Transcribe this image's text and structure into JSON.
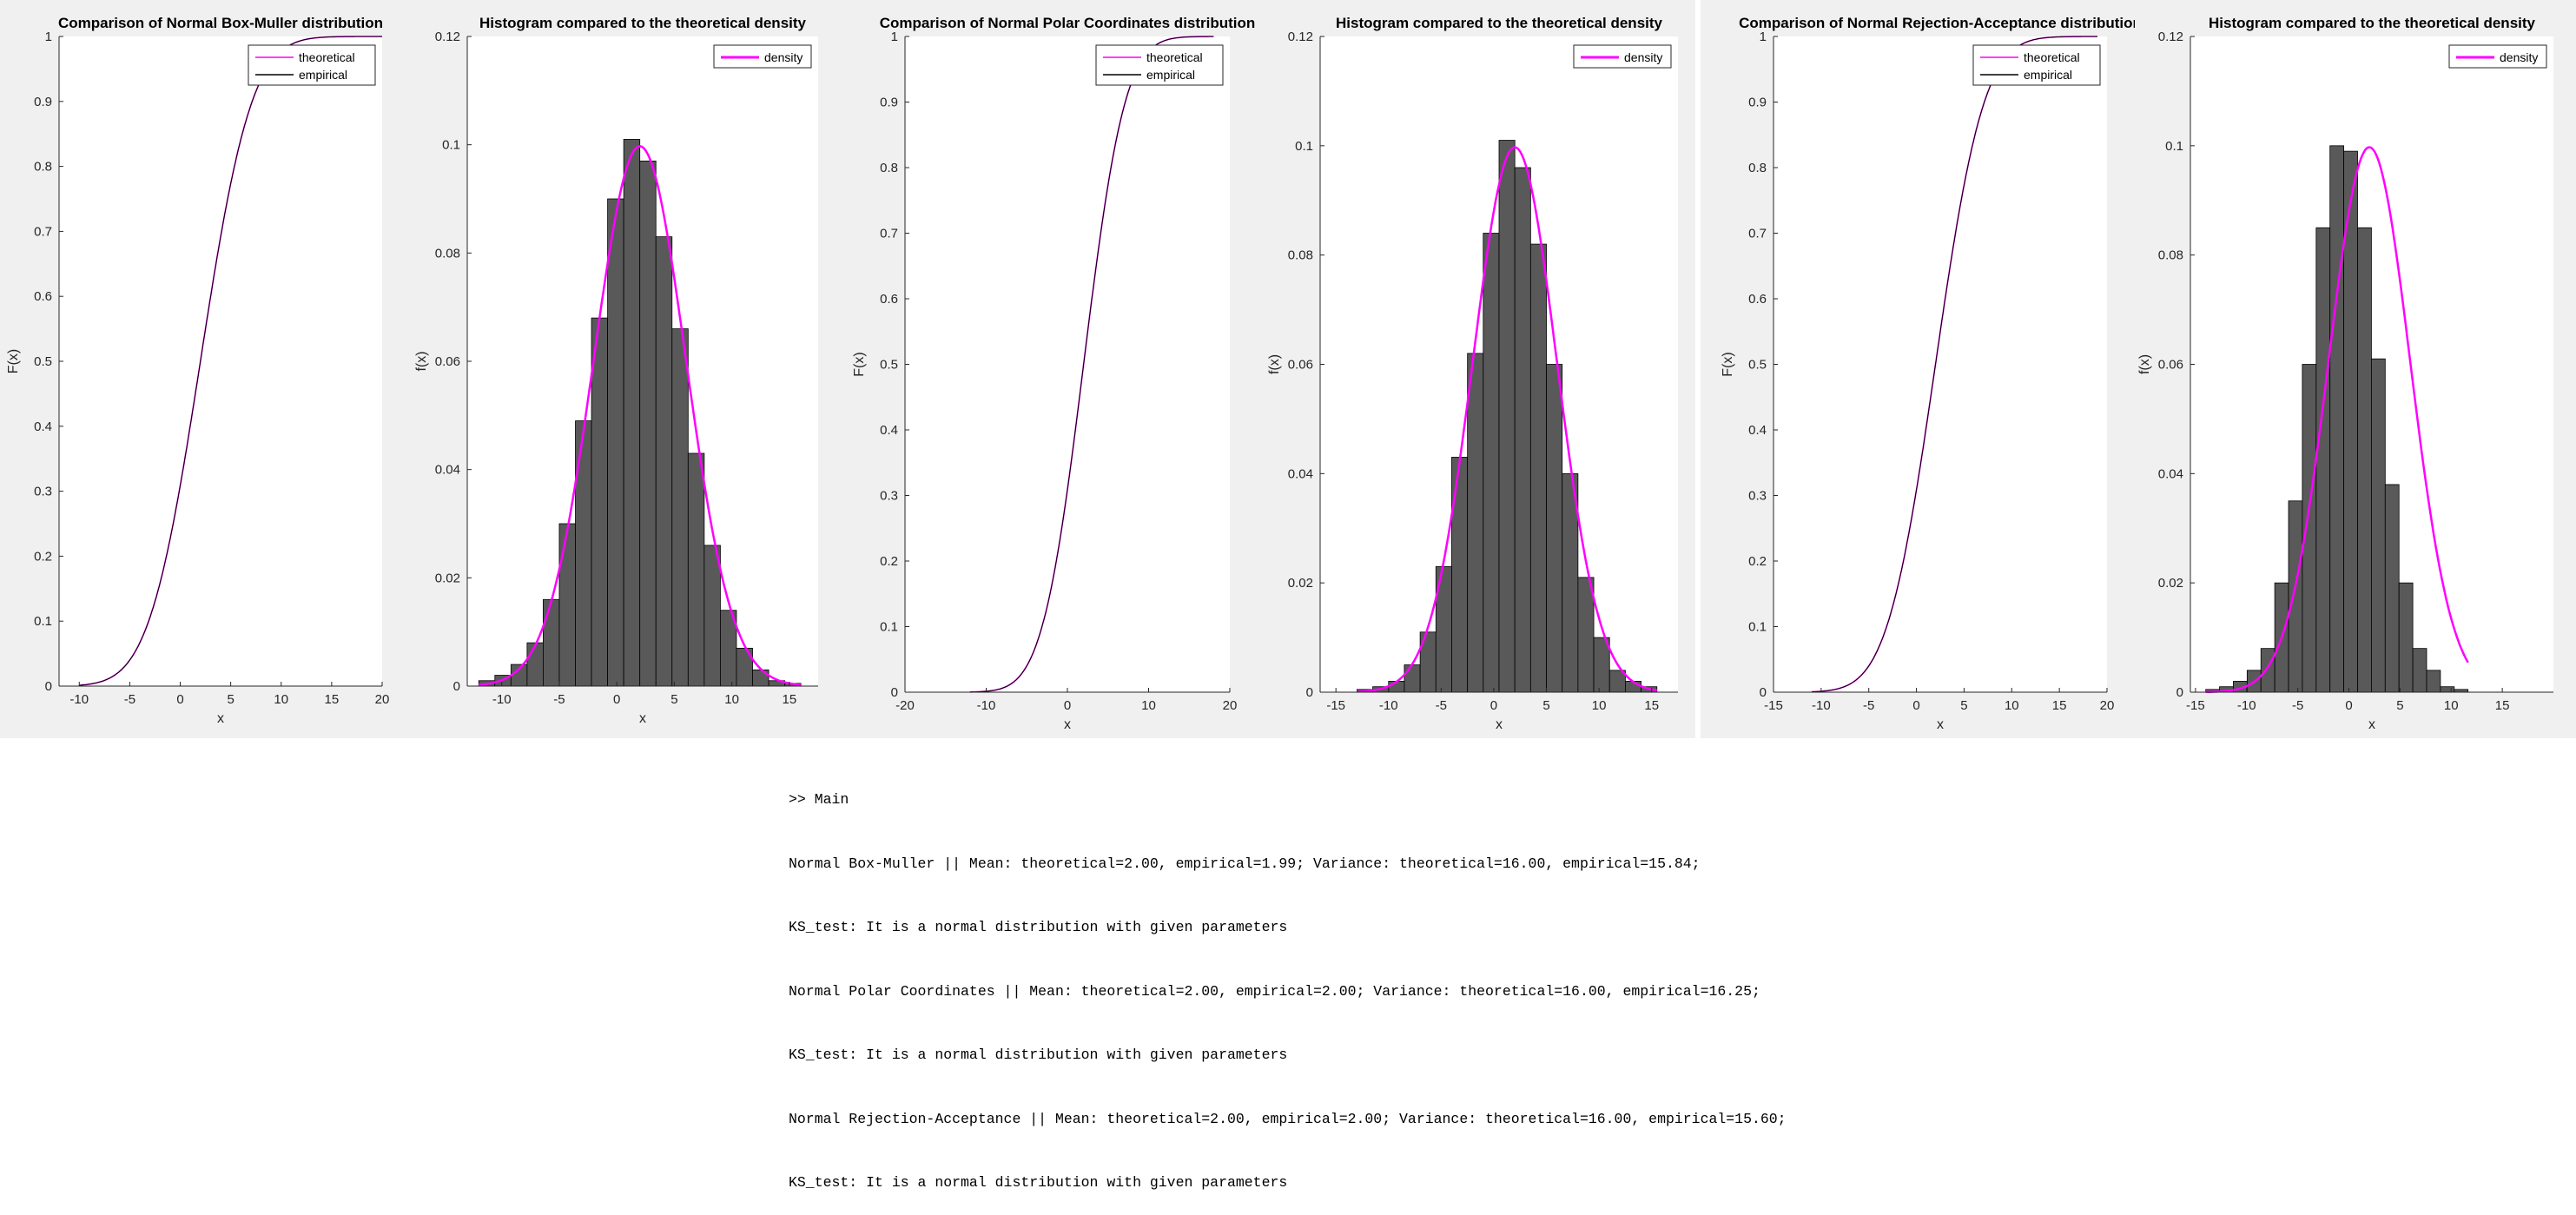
{
  "figures": [
    {
      "cdf_title": "Comparison of Normal Box-Muller distribution",
      "hist_title": "Histogram compared to the theoretical density"
    },
    {
      "cdf_title": "Comparison of Normal Polar Coordinates distribution",
      "hist_title": "Histogram compared to the theoretical density"
    },
    {
      "cdf_title": "Comparison of Normal Rejection-Acceptance distribution",
      "hist_title": "Histogram compared to the theoretical density"
    }
  ],
  "console": {
    "lines": [
      ">> Main",
      "Normal Box-Muller || Mean: theoretical=2.00, empirical=1.99; Variance: theoretical=16.00, empirical=15.84;",
      "KS_test: It is a normal distribution with given parameters",
      "Normal Polar Coordinates || Mean: theoretical=2.00, empirical=2.00; Variance: theoretical=16.00, empirical=16.25;",
      "KS_test: It is a normal distribution with given parameters",
      "Normal Rejection-Acceptance || Mean: theoretical=2.00, empirical=2.00; Variance: theoretical=16.00, empirical=15.60;",
      "KS_test: It is a normal distribution with given parameters"
    ]
  },
  "colors": {
    "theoretical": "#ff00ff",
    "empirical": "#000000",
    "bar_fill": "#595959",
    "figure_bg": "#f0f0f0"
  },
  "chart_data": [
    {
      "type": "line",
      "title": "Comparison of Normal Box-Muller distribution",
      "xlabel": "x",
      "ylabel": "F(x)",
      "xlim": [
        -12,
        20
      ],
      "ylim": [
        0,
        1
      ],
      "xticks": [
        -10,
        -5,
        0,
        5,
        10,
        15,
        20
      ],
      "yticks": [
        0,
        0.1,
        0.2,
        0.3,
        0.4,
        0.5,
        0.6,
        0.7,
        0.8,
        0.9,
        1
      ],
      "legend": {
        "position": "top-right",
        "entries": [
          "theoretical",
          "empirical"
        ]
      },
      "mean": 2,
      "sd": 4,
      "series": [
        {
          "name": "theoretical",
          "x": [
            -10,
            -8,
            -6,
            -4,
            -2,
            0,
            2,
            4,
            6,
            8,
            10,
            12,
            14,
            16,
            18,
            20
          ],
          "y": [
            0.001,
            0.006,
            0.023,
            0.067,
            0.159,
            0.309,
            0.5,
            0.691,
            0.841,
            0.933,
            0.977,
            0.994,
            0.999,
            1,
            1,
            1
          ]
        },
        {
          "name": "empirical",
          "x": [
            -10,
            -8,
            -6,
            -4,
            -2,
            0,
            2,
            4,
            6,
            8,
            10,
            12,
            14,
            16,
            18,
            20
          ],
          "y": [
            0.001,
            0.006,
            0.023,
            0.067,
            0.159,
            0.309,
            0.5,
            0.691,
            0.841,
            0.933,
            0.977,
            0.994,
            0.999,
            1,
            1,
            1
          ]
        }
      ]
    },
    {
      "type": "bar",
      "title": "Histogram compared to the theoretical density",
      "xlabel": "x",
      "ylabel": "f(x)",
      "xlim": [
        -13,
        17.5
      ],
      "ylim": [
        0,
        0.12
      ],
      "xticks": [
        -10,
        -5,
        0,
        5,
        10,
        15
      ],
      "yticks": [
        0,
        0.02,
        0.04,
        0.06,
        0.08,
        0.1,
        0.12
      ],
      "legend": {
        "position": "top-right",
        "entries": [
          "density"
        ]
      },
      "bin_start": -12,
      "bin_width": 1.4,
      "values": [
        0.001,
        0.002,
        0.004,
        0.008,
        0.016,
        0.03,
        0.049,
        0.068,
        0.09,
        0.101,
        0.097,
        0.083,
        0.066,
        0.043,
        0.026,
        0.014,
        0.007,
        0.003,
        0.001,
        0.0005
      ],
      "density": {
        "name": "density",
        "mean": 2,
        "sd": 4
      }
    },
    {
      "type": "line",
      "title": "Comparison of Normal Polar Coordinates distribution",
      "xlabel": "x",
      "ylabel": "F(x)",
      "xlim": [
        -20,
        20
      ],
      "ylim": [
        0,
        1
      ],
      "xticks": [
        -20,
        -10,
        0,
        10,
        20
      ],
      "yticks": [
        0,
        0.1,
        0.2,
        0.3,
        0.4,
        0.5,
        0.6,
        0.7,
        0.8,
        0.9,
        1
      ],
      "legend": {
        "position": "top-right",
        "entries": [
          "theoretical",
          "empirical"
        ]
      },
      "mean": 2,
      "sd": 4,
      "series": [
        {
          "name": "theoretical",
          "x": [
            -12,
            -10,
            -8,
            -6,
            -4,
            -2,
            0,
            2,
            4,
            6,
            8,
            10,
            12,
            14,
            16,
            18
          ],
          "y": [
            0,
            0.001,
            0.006,
            0.023,
            0.067,
            0.159,
            0.309,
            0.5,
            0.691,
            0.841,
            0.933,
            0.977,
            0.994,
            0.999,
            1,
            1
          ]
        },
        {
          "name": "empirical",
          "x": [
            -12,
            -10,
            -8,
            -6,
            -4,
            -2,
            0,
            2,
            4,
            6,
            8,
            10,
            12,
            14,
            16,
            18
          ],
          "y": [
            0,
            0.001,
            0.006,
            0.023,
            0.067,
            0.159,
            0.309,
            0.5,
            0.691,
            0.841,
            0.933,
            0.977,
            0.994,
            0.999,
            1,
            1
          ]
        }
      ]
    },
    {
      "type": "bar",
      "title": "Histogram compared to the theoretical density",
      "xlabel": "x",
      "ylabel": "f(x)",
      "xlim": [
        -16.5,
        17.5
      ],
      "ylim": [
        0,
        0.12
      ],
      "xticks": [
        -15,
        -10,
        -5,
        0,
        5,
        10,
        15
      ],
      "yticks": [
        0,
        0.02,
        0.04,
        0.06,
        0.08,
        0.1,
        0.12
      ],
      "legend": {
        "position": "top-right",
        "entries": [
          "density"
        ]
      },
      "bin_start": -13,
      "bin_width": 1.5,
      "values": [
        0.0005,
        0.001,
        0.002,
        0.005,
        0.011,
        0.023,
        0.043,
        0.062,
        0.084,
        0.101,
        0.096,
        0.082,
        0.06,
        0.04,
        0.021,
        0.01,
        0.004,
        0.002,
        0.001
      ],
      "density": {
        "name": "density",
        "mean": 2,
        "sd": 4
      }
    },
    {
      "type": "line",
      "title": "Comparison of Normal Rejection-Acceptance distribution",
      "xlabel": "x",
      "ylabel": "F(x)",
      "xlim": [
        -15,
        20
      ],
      "ylim": [
        0,
        1
      ],
      "xticks": [
        -15,
        -10,
        -5,
        0,
        5,
        10,
        15,
        20
      ],
      "yticks": [
        0,
        0.1,
        0.2,
        0.3,
        0.4,
        0.5,
        0.6,
        0.7,
        0.8,
        0.9,
        1
      ],
      "legend": {
        "position": "top-right",
        "entries": [
          "theoretical",
          "empirical"
        ]
      },
      "mean": 2,
      "sd": 4,
      "series": [
        {
          "name": "theoretical",
          "x": [
            -11,
            -9,
            -7,
            -5,
            -3,
            -1,
            1,
            3,
            5,
            7,
            9,
            11,
            13,
            15,
            17,
            19
          ],
          "y": [
            0.001,
            0.003,
            0.012,
            0.04,
            0.106,
            0.227,
            0.401,
            0.599,
            0.773,
            0.894,
            0.96,
            0.988,
            0.997,
            1,
            1,
            1
          ]
        },
        {
          "name": "empirical",
          "x": [
            -11,
            -9,
            -7,
            -5,
            -3,
            -1,
            1,
            3,
            5,
            7,
            9,
            11,
            13,
            15,
            17,
            19
          ],
          "y": [
            0.001,
            0.003,
            0.012,
            0.04,
            0.106,
            0.227,
            0.401,
            0.599,
            0.773,
            0.894,
            0.96,
            0.988,
            0.997,
            1,
            1,
            1
          ]
        }
      ]
    },
    {
      "type": "bar",
      "title": "Histogram compared to the theoretical density",
      "xlabel": "x",
      "ylabel": "f(x)",
      "xlim": [
        -15.5,
        20
      ],
      "ylim": [
        0,
        0.12
      ],
      "xticks": [
        -15,
        -10,
        -5,
        0,
        5,
        10,
        15
      ],
      "yticks": [
        0,
        0.02,
        0.04,
        0.06,
        0.08,
        0.1,
        0.12
      ],
      "legend": {
        "position": "top-right",
        "entries": [
          "density"
        ]
      },
      "bin_start": -14,
      "bin_width": 1.35,
      "values": [
        0.0005,
        0.001,
        0.002,
        0.004,
        0.008,
        0.02,
        0.035,
        0.06,
        0.085,
        0.1,
        0.099,
        0.085,
        0.061,
        0.038,
        0.02,
        0.008,
        0.004,
        0.001,
        0.0005
      ],
      "density": {
        "name": "density",
        "mean": 2,
        "sd": 4
      }
    }
  ]
}
